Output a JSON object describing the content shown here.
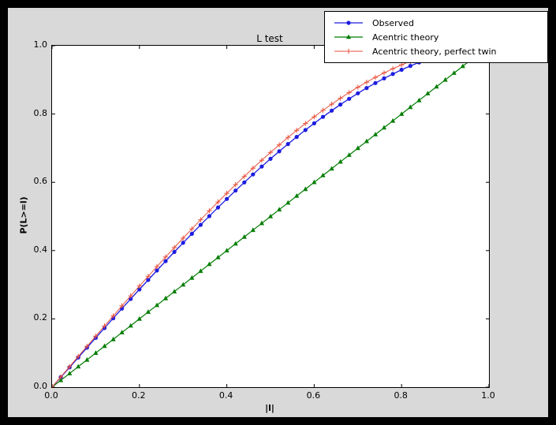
{
  "figure": {
    "title": "L test",
    "xlabel": "|l|",
    "ylabel": "P(L>=l)"
  },
  "chart_data": {
    "type": "line",
    "title": "L test",
    "xlabel": "|l|",
    "ylabel": "P(L>=l)",
    "xlim": [
      0,
      1
    ],
    "ylim": [
      0,
      1
    ],
    "grid": false,
    "legend_position": "upper right",
    "background_color": "#d9d9d9",
    "axes_color": "#ffffff",
    "x_ticks": [
      "0.0",
      "0.2",
      "0.4",
      "0.6",
      "0.8",
      "1.0"
    ],
    "x_tick_values": [
      0,
      0.2,
      0.4,
      0.6,
      0.8,
      1.0
    ],
    "y_ticks": [
      "0.0",
      "0.2",
      "0.4",
      "0.6",
      "0.8",
      "1.0"
    ],
    "y_tick_values": [
      0,
      0.2,
      0.4,
      0.6,
      0.8,
      1.0
    ],
    "series": [
      {
        "id": "observed",
        "name": "Observed",
        "color": "#1c1ce0",
        "marker": "circle",
        "line_width": 1.3,
        "x": [
          0,
          0.02,
          0.04,
          0.06,
          0.08,
          0.1,
          0.12,
          0.14,
          0.16,
          0.18,
          0.2,
          0.22,
          0.24,
          0.26,
          0.28,
          0.3,
          0.32,
          0.34,
          0.36,
          0.38,
          0.4,
          0.42,
          0.44,
          0.46,
          0.48,
          0.5,
          0.52,
          0.54,
          0.56,
          0.58,
          0.6,
          0.62,
          0.64,
          0.66,
          0.68,
          0.7,
          0.72,
          0.74,
          0.76,
          0.78,
          0.8,
          0.82,
          0.84,
          0.86
        ],
        "y": [
          0,
          0.029,
          0.058,
          0.0869,
          0.1158,
          0.1446,
          0.1732,
          0.2018,
          0.2302,
          0.2584,
          0.2864,
          0.3142,
          0.3418,
          0.3691,
          0.3961,
          0.4229,
          0.4493,
          0.4753,
          0.501,
          0.5263,
          0.5512,
          0.5757,
          0.5997,
          0.6232,
          0.6462,
          0.6688,
          0.6907,
          0.7122,
          0.733,
          0.7532,
          0.7728,
          0.7917,
          0.81,
          0.8277,
          0.8445,
          0.8607,
          0.8761,
          0.8907,
          0.9045,
          0.9174,
          0.9296,
          0.9409,
          0.9513,
          0.9608
        ]
      },
      {
        "id": "acentric-theory",
        "name": "Acentric theory",
        "color": "#007d00",
        "marker": "triangle",
        "line_width": 1.2,
        "x": [
          0,
          0.02,
          0.04,
          0.06,
          0.08,
          0.1,
          0.12,
          0.14,
          0.16,
          0.18,
          0.2,
          0.22,
          0.24,
          0.26,
          0.28,
          0.3,
          0.32,
          0.34,
          0.36,
          0.38,
          0.4,
          0.42,
          0.44,
          0.46,
          0.48,
          0.5,
          0.52,
          0.54,
          0.56,
          0.58,
          0.6,
          0.62,
          0.64,
          0.66,
          0.68,
          0.7,
          0.72,
          0.74,
          0.76,
          0.78,
          0.8,
          0.82,
          0.84,
          0.86,
          0.88,
          0.9,
          0.92,
          0.94,
          0.96
        ],
        "y": [
          0,
          0.02,
          0.04,
          0.06,
          0.08,
          0.1,
          0.12,
          0.14,
          0.16,
          0.18,
          0.2,
          0.22,
          0.24,
          0.26,
          0.28,
          0.3,
          0.32,
          0.34,
          0.36,
          0.38,
          0.4,
          0.42,
          0.44,
          0.46,
          0.48,
          0.5,
          0.52,
          0.54,
          0.56,
          0.58,
          0.6,
          0.62,
          0.64,
          0.66,
          0.68,
          0.7,
          0.72,
          0.74,
          0.76,
          0.78,
          0.8,
          0.82,
          0.84,
          0.86,
          0.88,
          0.9,
          0.92,
          0.94,
          0.96
        ]
      },
      {
        "id": "acentric-theory-perfect-twin",
        "name": "Acentric theory, perfect twin",
        "color": "#e8513e",
        "marker": "plus",
        "line_width": 1,
        "x": [
          0,
          0.02,
          0.04,
          0.06,
          0.08,
          0.1,
          0.12,
          0.14,
          0.16,
          0.18,
          0.2,
          0.22,
          0.24,
          0.26,
          0.28,
          0.3,
          0.32,
          0.34,
          0.36,
          0.38,
          0.4,
          0.42,
          0.44,
          0.46,
          0.48,
          0.5,
          0.52,
          0.54,
          0.56,
          0.58,
          0.6,
          0.62,
          0.64,
          0.66,
          0.68,
          0.7,
          0.72,
          0.74,
          0.76,
          0.78,
          0.8,
          0.82,
          0.84
        ],
        "y": [
          0,
          0.03,
          0.06,
          0.0899,
          0.1197,
          0.1495,
          0.1791,
          0.2086,
          0.238,
          0.2671,
          0.296,
          0.3247,
          0.3531,
          0.3812,
          0.409,
          0.4365,
          0.4636,
          0.4903,
          0.5167,
          0.5426,
          0.568,
          0.593,
          0.6174,
          0.6413,
          0.6647,
          0.6875,
          0.7097,
          0.7313,
          0.7522,
          0.7724,
          0.792,
          0.8108,
          0.8289,
          0.8463,
          0.8628,
          0.8785,
          0.8934,
          0.9074,
          0.9205,
          0.9327,
          0.944,
          0.9543,
          0.9636
        ]
      }
    ]
  }
}
